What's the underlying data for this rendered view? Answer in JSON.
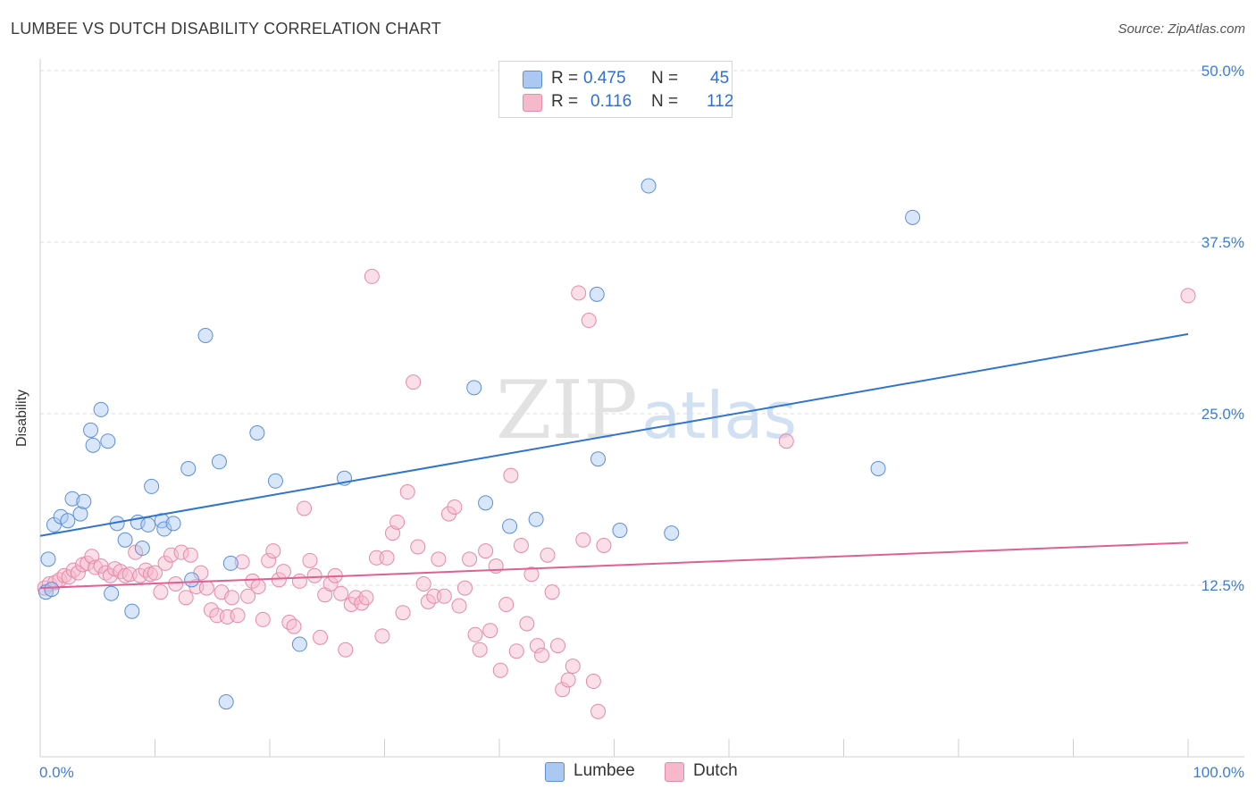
{
  "header": {
    "title": "LUMBEE VS DUTCH DISABILITY CORRELATION CHART",
    "source": "Source: ZipAtlas.com"
  },
  "legend_top": {
    "rows": [
      {
        "r_label": "R =",
        "r_value": "0.475",
        "n_label": "N =",
        "n_value": "45"
      },
      {
        "r_label": "R =",
        "r_value": "0.116",
        "n_label": "N =",
        "n_value": "112"
      }
    ]
  },
  "legend_bottom": [
    "Lumbee",
    "Dutch"
  ],
  "colors": {
    "lumbee_fill": "#aac8f2",
    "lumbee_stroke": "#5b8fd9",
    "lumbee_line": "#2f74d0",
    "dutch_fill": "#f6b8cb",
    "dutch_stroke": "#e58aa8",
    "dutch_line": "#e0608f",
    "tick_label": "#3d7dd4"
  },
  "watermark": {
    "part1": "ZIP",
    "part2": "atlas"
  },
  "chart_data": {
    "type": "scatter",
    "title": "LUMBEE VS DUTCH DISABILITY CORRELATION CHART",
    "xlabel": "",
    "ylabel": "Disability",
    "xlim": [
      0,
      100
    ],
    "ylim": [
      0,
      50
    ],
    "x_tick_labels": [
      "0.0%",
      "100.0%"
    ],
    "y_ticks": [
      12.5,
      25.0,
      37.5,
      50.0
    ],
    "y_tick_labels": [
      "12.5%",
      "25.0%",
      "37.5%",
      "50.0%"
    ],
    "grid": "horizontal dashed",
    "legend_placement": "top-center",
    "series": [
      {
        "name": "Lumbee",
        "R": 0.475,
        "N": 45,
        "trend": {
          "x": [
            0,
            100
          ],
          "y": [
            16.1,
            30.8
          ]
        },
        "points": [
          [
            0.5,
            12.0
          ],
          [
            0.7,
            14.4
          ],
          [
            1.2,
            16.9
          ],
          [
            1.8,
            17.5
          ],
          [
            2.4,
            17.2
          ],
          [
            2.8,
            18.8
          ],
          [
            3.5,
            17.7
          ],
          [
            3.8,
            18.6
          ],
          [
            4.4,
            23.8
          ],
          [
            4.6,
            22.7
          ],
          [
            5.3,
            25.3
          ],
          [
            5.9,
            23.0
          ],
          [
            6.2,
            11.9
          ],
          [
            6.7,
            17.0
          ],
          [
            7.4,
            15.8
          ],
          [
            8.0,
            10.6
          ],
          [
            8.5,
            17.1
          ],
          [
            8.9,
            15.2
          ],
          [
            9.4,
            16.9
          ],
          [
            9.7,
            19.7
          ],
          [
            10.6,
            17.2
          ],
          [
            10.8,
            16.6
          ],
          [
            11.6,
            17.0
          ],
          [
            12.9,
            21.0
          ],
          [
            13.2,
            12.9
          ],
          [
            14.4,
            30.7
          ],
          [
            15.6,
            21.5
          ],
          [
            16.2,
            4.0
          ],
          [
            16.6,
            14.1
          ],
          [
            18.9,
            23.6
          ],
          [
            20.5,
            20.1
          ],
          [
            22.6,
            8.2
          ],
          [
            26.5,
            20.3
          ],
          [
            37.8,
            26.9
          ],
          [
            38.8,
            18.5
          ],
          [
            40.9,
            16.8
          ],
          [
            43.2,
            17.3
          ],
          [
            48.5,
            33.7
          ],
          [
            48.6,
            21.7
          ],
          [
            50.5,
            16.5
          ],
          [
            53.0,
            41.6
          ],
          [
            55.0,
            16.3
          ],
          [
            73.0,
            21.0
          ],
          [
            76.0,
            39.3
          ],
          [
            1.0,
            12.2
          ]
        ]
      },
      {
        "name": "Dutch",
        "R": 0.116,
        "N": 112,
        "trend": {
          "x": [
            0,
            100
          ],
          "y": [
            12.3,
            15.6
          ]
        },
        "points": [
          [
            0.4,
            12.3
          ],
          [
            0.8,
            12.6
          ],
          [
            1.3,
            12.7
          ],
          [
            1.7,
            12.9
          ],
          [
            2.1,
            13.2
          ],
          [
            2.5,
            13.1
          ],
          [
            2.9,
            13.6
          ],
          [
            3.3,
            13.4
          ],
          [
            3.7,
            14.0
          ],
          [
            4.1,
            14.1
          ],
          [
            4.5,
            14.6
          ],
          [
            4.8,
            13.8
          ],
          [
            5.3,
            13.9
          ],
          [
            5.7,
            13.4
          ],
          [
            6.1,
            13.2
          ],
          [
            6.5,
            13.7
          ],
          [
            7.0,
            13.5
          ],
          [
            7.4,
            13.2
          ],
          [
            7.8,
            13.3
          ],
          [
            8.3,
            14.9
          ],
          [
            8.7,
            13.2
          ],
          [
            9.2,
            13.6
          ],
          [
            9.6,
            13.3
          ],
          [
            10.0,
            13.4
          ],
          [
            10.5,
            12.0
          ],
          [
            10.9,
            14.1
          ],
          [
            11.4,
            14.7
          ],
          [
            11.8,
            12.6
          ],
          [
            12.3,
            14.9
          ],
          [
            12.7,
            11.6
          ],
          [
            13.1,
            14.7
          ],
          [
            13.6,
            12.4
          ],
          [
            14.0,
            13.4
          ],
          [
            14.5,
            12.3
          ],
          [
            14.9,
            10.7
          ],
          [
            15.4,
            10.3
          ],
          [
            15.8,
            12.0
          ],
          [
            16.3,
            10.2
          ],
          [
            16.7,
            11.6
          ],
          [
            17.2,
            10.3
          ],
          [
            17.6,
            14.2
          ],
          [
            18.1,
            11.7
          ],
          [
            18.5,
            12.8
          ],
          [
            19.0,
            12.4
          ],
          [
            19.4,
            10.0
          ],
          [
            19.9,
            14.3
          ],
          [
            20.3,
            15.0
          ],
          [
            20.8,
            12.9
          ],
          [
            21.2,
            13.5
          ],
          [
            21.7,
            9.8
          ],
          [
            22.1,
            9.5
          ],
          [
            22.6,
            12.8
          ],
          [
            23.0,
            18.1
          ],
          [
            23.5,
            14.3
          ],
          [
            23.9,
            13.2
          ],
          [
            24.4,
            8.7
          ],
          [
            24.8,
            11.8
          ],
          [
            25.3,
            12.6
          ],
          [
            25.7,
            13.2
          ],
          [
            26.2,
            11.9
          ],
          [
            26.6,
            7.8
          ],
          [
            27.1,
            11.1
          ],
          [
            27.5,
            11.6
          ],
          [
            28.0,
            11.2
          ],
          [
            28.4,
            11.6
          ],
          [
            28.9,
            35.0
          ],
          [
            29.3,
            14.5
          ],
          [
            29.8,
            8.8
          ],
          [
            30.2,
            14.5
          ],
          [
            30.7,
            16.3
          ],
          [
            31.1,
            17.1
          ],
          [
            31.6,
            10.5
          ],
          [
            32.0,
            19.3
          ],
          [
            32.5,
            27.3
          ],
          [
            32.9,
            15.3
          ],
          [
            33.4,
            12.6
          ],
          [
            33.8,
            11.3
          ],
          [
            34.3,
            11.7
          ],
          [
            34.7,
            14.4
          ],
          [
            35.2,
            11.7
          ],
          [
            35.6,
            17.7
          ],
          [
            36.1,
            18.2
          ],
          [
            36.5,
            11.0
          ],
          [
            37.0,
            12.3
          ],
          [
            37.4,
            14.4
          ],
          [
            37.9,
            8.9
          ],
          [
            38.3,
            7.8
          ],
          [
            38.8,
            15.0
          ],
          [
            39.2,
            9.2
          ],
          [
            39.7,
            13.9
          ],
          [
            40.1,
            6.3
          ],
          [
            40.6,
            11.1
          ],
          [
            41.0,
            20.5
          ],
          [
            41.5,
            7.7
          ],
          [
            41.9,
            15.4
          ],
          [
            42.4,
            9.7
          ],
          [
            42.8,
            13.3
          ],
          [
            43.3,
            8.1
          ],
          [
            43.7,
            7.4
          ],
          [
            44.2,
            14.7
          ],
          [
            44.6,
            12.0
          ],
          [
            45.1,
            8.1
          ],
          [
            45.5,
            4.9
          ],
          [
            46.0,
            5.6
          ],
          [
            46.4,
            6.6
          ],
          [
            46.9,
            33.8
          ],
          [
            47.3,
            15.8
          ],
          [
            47.8,
            31.8
          ],
          [
            48.2,
            5.5
          ],
          [
            48.6,
            3.3
          ],
          [
            49.1,
            15.4
          ],
          [
            65.0,
            23.0
          ],
          [
            100.0,
            33.6
          ]
        ]
      }
    ]
  }
}
